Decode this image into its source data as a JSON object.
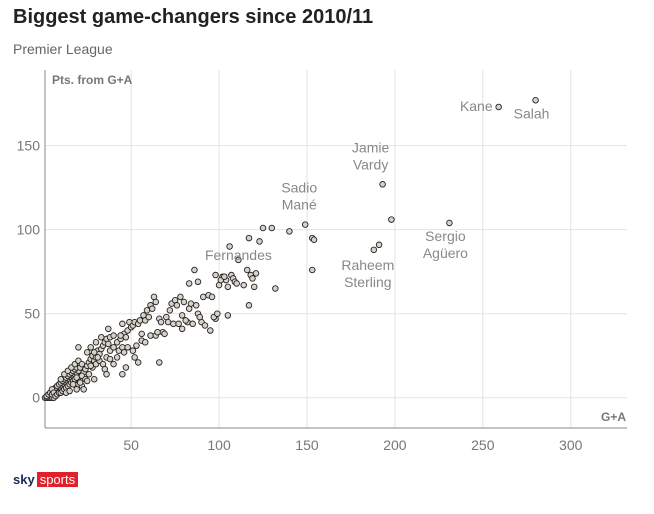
{
  "chart_data": {
    "type": "scatter",
    "title": "Biggest game-changers since 2010/11",
    "subtitle": "Premier League",
    "xlabel": "G+A",
    "ylabel": "Pts. from G+A",
    "xlim": [
      1,
      332
    ],
    "ylim": [
      -18,
      195
    ],
    "xticks": [
      50,
      100,
      150,
      200,
      250,
      300
    ],
    "yticks": [
      0,
      50,
      100,
      150
    ],
    "grid": true,
    "colors": {
      "point_fill": "#d9d2c8",
      "point_stroke": "#222222",
      "grid": "#e3e3e3",
      "axis": "#888888"
    },
    "annotations": [
      {
        "text": [
          "Salah"
        ],
        "x": 280,
        "y": 177
      },
      {
        "text": [
          "Kane"
        ],
        "x": 259,
        "y": 173
      },
      {
        "text": [
          "Jamie",
          "Vardy"
        ],
        "x": 193,
        "y": 127
      },
      {
        "text": [
          "Sadio",
          "Mané"
        ],
        "x": 149,
        "y": 103
      },
      {
        "text": [
          "Sergio",
          "Agüero"
        ],
        "x": 231,
        "y": 104
      },
      {
        "text": [
          "Raheem",
          "Sterling"
        ],
        "x": 188,
        "y": 88
      },
      {
        "text": [
          "Fernandes"
        ],
        "x": 111,
        "y": 82
      }
    ],
    "points": [
      [
        280,
        177
      ],
      [
        259,
        173
      ],
      [
        193,
        127
      ],
      [
        198,
        106
      ],
      [
        231,
        104
      ],
      [
        188,
        88
      ],
      [
        191,
        91
      ],
      [
        149,
        103
      ],
      [
        153,
        95
      ],
      [
        154,
        94
      ],
      [
        106,
        90
      ],
      [
        117,
        95
      ],
      [
        125,
        101
      ],
      [
        130,
        101
      ],
      [
        140,
        99
      ],
      [
        123,
        93
      ],
      [
        153,
        76
      ],
      [
        132,
        65
      ],
      [
        116,
        76
      ],
      [
        118,
        73
      ],
      [
        119,
        71
      ],
      [
        120,
        66
      ],
      [
        114,
        67
      ],
      [
        121,
        74
      ],
      [
        117,
        55
      ],
      [
        102,
        72
      ],
      [
        104,
        70
      ],
      [
        107,
        73
      ],
      [
        108,
        71
      ],
      [
        109,
        69
      ],
      [
        98,
        73
      ],
      [
        100,
        67
      ],
      [
        98,
        47
      ],
      [
        105,
        49
      ],
      [
        88,
        69
      ],
      [
        86,
        76
      ],
      [
        83,
        68
      ],
      [
        111,
        82
      ],
      [
        1,
        0
      ],
      [
        2,
        0
      ],
      [
        3,
        0
      ],
      [
        4,
        0
      ],
      [
        5,
        0
      ],
      [
        6,
        0
      ],
      [
        2,
        1
      ],
      [
        3,
        2
      ],
      [
        4,
        3
      ],
      [
        5,
        2
      ],
      [
        6,
        4
      ],
      [
        7,
        3
      ],
      [
        8,
        5
      ],
      [
        9,
        4
      ],
      [
        10,
        6
      ],
      [
        11,
        7
      ],
      [
        12,
        8
      ],
      [
        13,
        9
      ],
      [
        14,
        10
      ],
      [
        15,
        11
      ],
      [
        16,
        12
      ],
      [
        17,
        13
      ],
      [
        18,
        14
      ],
      [
        19,
        15
      ],
      [
        20,
        16
      ],
      [
        7,
        6
      ],
      [
        8,
        7
      ],
      [
        9,
        8
      ],
      [
        10,
        9
      ],
      [
        11,
        10
      ],
      [
        12,
        11
      ],
      [
        13,
        12
      ],
      [
        14,
        13
      ],
      [
        15,
        14
      ],
      [
        16,
        15
      ],
      [
        17,
        16
      ],
      [
        18,
        17
      ],
      [
        19,
        18
      ],
      [
        20,
        12
      ],
      [
        5,
        5
      ],
      [
        6,
        3
      ],
      [
        7,
        1
      ],
      [
        8,
        2
      ],
      [
        9,
        3
      ],
      [
        10,
        3
      ],
      [
        11,
        4
      ],
      [
        12,
        5
      ],
      [
        13,
        6
      ],
      [
        14,
        7
      ],
      [
        15,
        8
      ],
      [
        16,
        9
      ],
      [
        17,
        10
      ],
      [
        18,
        11
      ],
      [
        19,
        12
      ],
      [
        20,
        8
      ],
      [
        10,
        11
      ],
      [
        12,
        14
      ],
      [
        14,
        16
      ],
      [
        16,
        18
      ],
      [
        18,
        20
      ],
      [
        20,
        22
      ],
      [
        13,
        3
      ],
      [
        22,
        7
      ],
      [
        15,
        4
      ],
      [
        21,
        18
      ],
      [
        22,
        20
      ],
      [
        23,
        15
      ],
      [
        24,
        17
      ],
      [
        25,
        19
      ],
      [
        26,
        21
      ],
      [
        27,
        23
      ],
      [
        28,
        25
      ],
      [
        29,
        22
      ],
      [
        30,
        24
      ],
      [
        22,
        13
      ],
      [
        24,
        11
      ],
      [
        26,
        14
      ],
      [
        28,
        18
      ],
      [
        30,
        20
      ],
      [
        25,
        27
      ],
      [
        27,
        30
      ],
      [
        20,
        30
      ],
      [
        31,
        28
      ],
      [
        32,
        26
      ],
      [
        33,
        29
      ],
      [
        34,
        31
      ],
      [
        35,
        33
      ],
      [
        36,
        35
      ],
      [
        37,
        32
      ],
      [
        38,
        36
      ],
      [
        32,
        22
      ],
      [
        34,
        20
      ],
      [
        36,
        24
      ],
      [
        38,
        28
      ],
      [
        35,
        17
      ],
      [
        36,
        14
      ],
      [
        40,
        30
      ],
      [
        42,
        33
      ],
      [
        44,
        35
      ],
      [
        46,
        38
      ],
      [
        48,
        40
      ],
      [
        45,
        44
      ],
      [
        49,
        45
      ],
      [
        44,
        37
      ],
      [
        30,
        33
      ],
      [
        31,
        24
      ],
      [
        29,
        27
      ],
      [
        27,
        19
      ],
      [
        25,
        10
      ],
      [
        23,
        5
      ],
      [
        21,
        9
      ],
      [
        19,
        5
      ],
      [
        17,
        8
      ],
      [
        29,
        11
      ],
      [
        33,
        36
      ],
      [
        37,
        41
      ],
      [
        40,
        37
      ],
      [
        43,
        28
      ],
      [
        45,
        30
      ],
      [
        47,
        36
      ],
      [
        50,
        42
      ],
      [
        51,
        43
      ],
      [
        52,
        45
      ],
      [
        54,
        44
      ],
      [
        55,
        46
      ],
      [
        56,
        38
      ],
      [
        57,
        49
      ],
      [
        58,
        46
      ],
      [
        59,
        52
      ],
      [
        60,
        48
      ],
      [
        61,
        55
      ],
      [
        62,
        53
      ],
      [
        63,
        60
      ],
      [
        64,
        57
      ],
      [
        66,
        47
      ],
      [
        67,
        45
      ],
      [
        68,
        39
      ],
      [
        70,
        48
      ],
      [
        72,
        52
      ],
      [
        73,
        56
      ],
      [
        75,
        58
      ],
      [
        76,
        55
      ],
      [
        78,
        60
      ],
      [
        79,
        49
      ],
      [
        80,
        57
      ],
      [
        82,
        45
      ],
      [
        83,
        53
      ],
      [
        85,
        44
      ],
      [
        88,
        50
      ],
      [
        90,
        45
      ],
      [
        92,
        43
      ],
      [
        95,
        40
      ],
      [
        52,
        24
      ],
      [
        54,
        21
      ],
      [
        51,
        28
      ],
      [
        53,
        31
      ],
      [
        56,
        34
      ],
      [
        58,
        33
      ],
      [
        61,
        37
      ],
      [
        64,
        37
      ],
      [
        65,
        39
      ],
      [
        66,
        21
      ],
      [
        69,
        38
      ],
      [
        71,
        45
      ],
      [
        74,
        44
      ],
      [
        77,
        44
      ],
      [
        79,
        41
      ],
      [
        81,
        46
      ],
      [
        84,
        56
      ],
      [
        87,
        55
      ],
      [
        89,
        48
      ],
      [
        91,
        60
      ],
      [
        94,
        61
      ],
      [
        96,
        60
      ],
      [
        97,
        48
      ],
      [
        99,
        50
      ],
      [
        101,
        70
      ],
      [
        103,
        72
      ],
      [
        105,
        66
      ],
      [
        110,
        68
      ],
      [
        48,
        30
      ],
      [
        46,
        27
      ],
      [
        47,
        18
      ],
      [
        45,
        14
      ],
      [
        42,
        24
      ],
      [
        40,
        20
      ],
      [
        38,
        23
      ]
    ]
  },
  "logo": {
    "sky": "sky",
    "sports": "sports"
  }
}
